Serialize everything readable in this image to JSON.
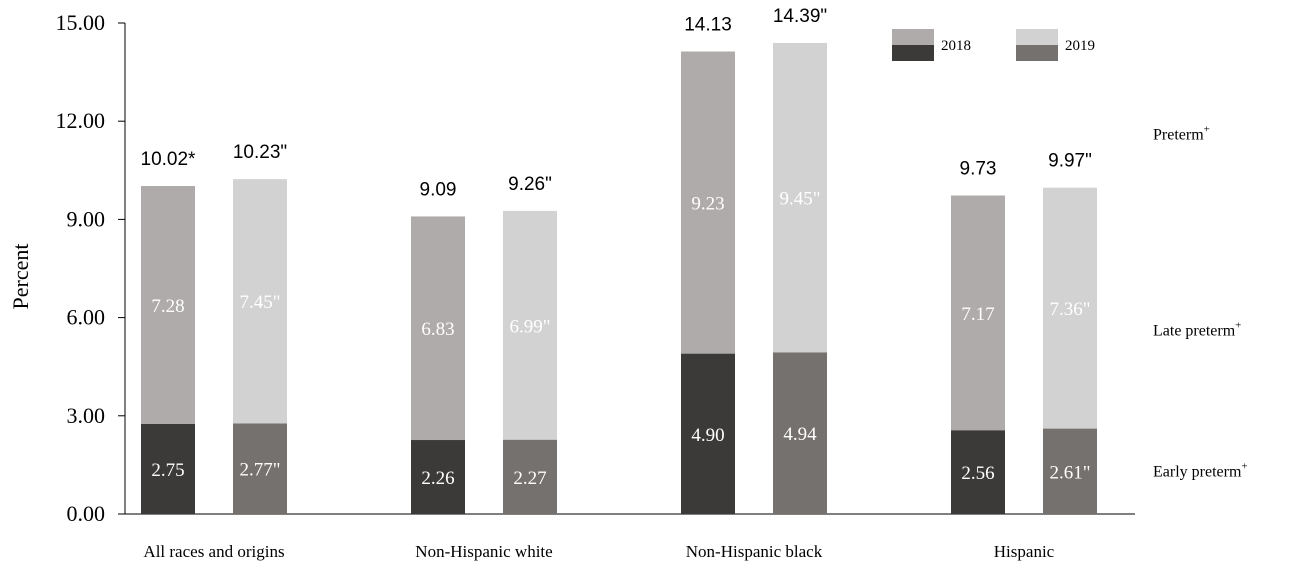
{
  "chart_data": {
    "type": "bar",
    "stacked": true,
    "ylabel": "Percent",
    "ylim": [
      0,
      15
    ],
    "yticks": [
      "0.00",
      "3.00",
      "6.00",
      "9.00",
      "12.00",
      "15.00"
    ],
    "categories": [
      "All races and origins",
      "Non-Hispanic white",
      "Non-Hispanic black",
      "Hispanic"
    ],
    "series": [
      {
        "name": "2018",
        "early_preterm": [
          2.75,
          2.26,
          4.9,
          2.56
        ],
        "late_preterm": [
          7.28,
          6.83,
          9.23,
          7.17
        ],
        "total": [
          10.02,
          9.09,
          14.13,
          9.73
        ],
        "early_labels": [
          "2.75",
          "2.26",
          "4.90",
          "2.56"
        ],
        "late_labels": [
          "7.28",
          "6.83",
          "9.23",
          "7.17"
        ],
        "total_labels": [
          "10.02*",
          "9.09",
          "14.13",
          "9.73"
        ],
        "colors": {
          "early": "#3b3a38",
          "late": "#aeabaa"
        }
      },
      {
        "name": "2019",
        "early_preterm": [
          2.77,
          2.27,
          4.94,
          2.61
        ],
        "late_preterm": [
          7.45,
          6.99,
          9.45,
          7.36
        ],
        "total": [
          10.23,
          9.26,
          14.39,
          9.97
        ],
        "early_labels": [
          "2.77\"",
          "2.27",
          "4.94",
          "2.61\""
        ],
        "late_labels": [
          "7.45\"",
          "6.99\"",
          "9.45\"",
          "7.36\""
        ],
        "total_labels": [
          "10.23\"",
          "9.26\"",
          "14.39\"",
          "9.97\""
        ],
        "colors": {
          "early": "#75716e",
          "late": "#d3d2d2"
        }
      }
    ],
    "side_labels": [
      {
        "text": "Preterm",
        "sup": "+",
        "level": 11.6
      },
      {
        "text": "Late preterm",
        "sup": "+",
        "level": 5.6
      },
      {
        "text": "Early preterm",
        "sup": "+",
        "level": 1.3
      }
    ],
    "legend": [
      "2018",
      "2019"
    ],
    "legend_position": "top-right",
    "grid": false,
    "inner_label_colors": {
      "light": "#ffffff"
    }
  }
}
